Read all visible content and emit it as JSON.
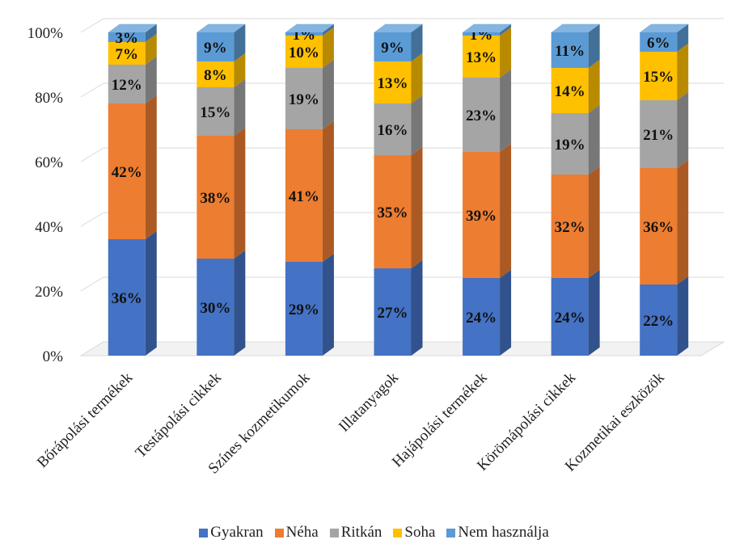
{
  "chart_data": {
    "type": "bar",
    "stacked": true,
    "percent_stacked": true,
    "three_d": true,
    "categories": [
      "Bőrápolási termékek",
      "Testápolási cikkek",
      "Színes kozmetikumok",
      "Illatanyagok",
      "Hajápolási termékek",
      "Körömápolási cikkek",
      "Kozmetikai eszközök"
    ],
    "series": [
      {
        "name": "Gyakran",
        "color": "#4472C4",
        "values": [
          36,
          30,
          29,
          27,
          24,
          24,
          22
        ],
        "labels": [
          "36%",
          "30%",
          "29%",
          "27%",
          "24%",
          "24%",
          "22%"
        ]
      },
      {
        "name": "Néha",
        "color": "#ED7D31",
        "values": [
          42,
          38,
          41,
          35,
          39,
          32,
          36
        ],
        "labels": [
          "42%",
          "38%",
          "41%",
          "35%",
          "39%",
          "32%",
          "36%"
        ]
      },
      {
        "name": "Ritkán",
        "color": "#A5A5A5",
        "values": [
          12,
          15,
          19,
          16,
          23,
          19,
          21
        ],
        "labels": [
          "12%",
          "15%",
          "19%",
          "16%",
          "23%",
          "19%",
          "21%"
        ]
      },
      {
        "name": "Soha",
        "color": "#FFC000",
        "values": [
          7,
          8,
          10,
          13,
          13,
          14,
          15
        ],
        "labels": [
          "7%",
          "8%",
          "10%",
          "13%",
          "13%",
          "14%",
          "15%"
        ]
      },
      {
        "name": "Nem használja",
        "color": "#5B9BD5",
        "values": [
          3,
          9,
          1,
          9,
          1,
          11,
          6
        ],
        "labels": [
          "3%",
          "9%",
          "1%",
          "9%",
          "1%",
          "11%",
          "6%"
        ]
      }
    ],
    "y_ticks": [
      "0%",
      "20%",
      "40%",
      "60%",
      "80%",
      "100%"
    ],
    "ylim": [
      0,
      100
    ],
    "grid": true,
    "legend_position": "bottom"
  }
}
